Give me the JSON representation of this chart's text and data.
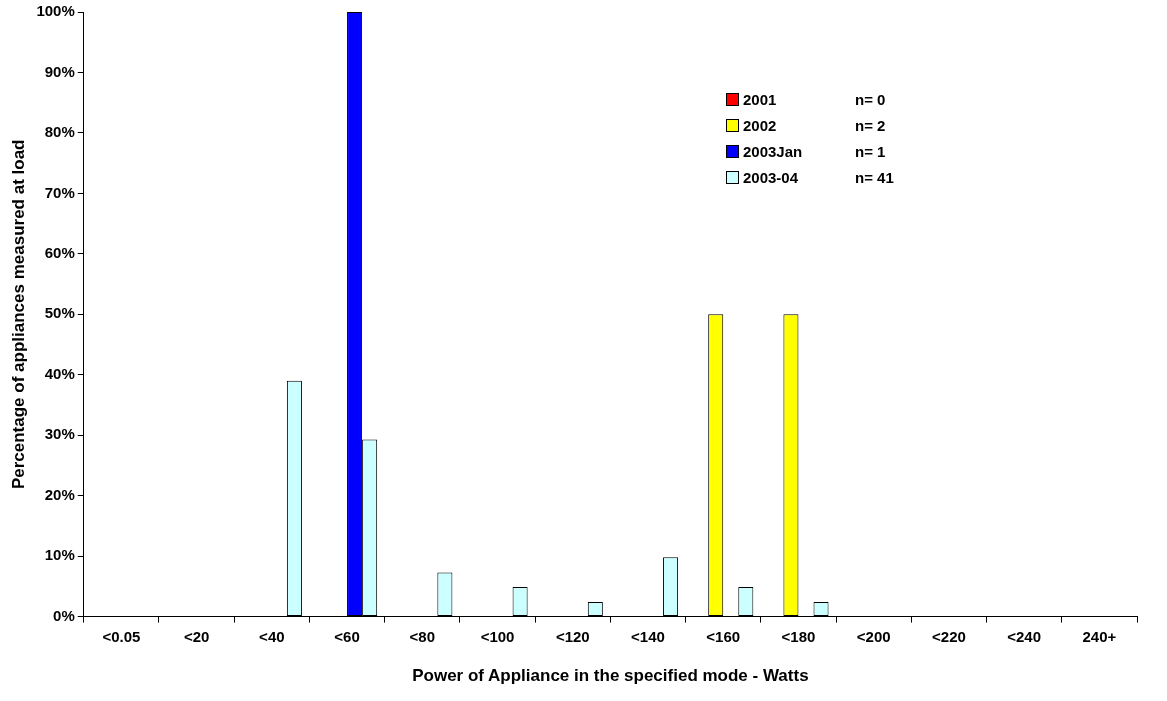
{
  "chart_data": {
    "type": "bar",
    "xlabel": "Power of Appliance in the specified mode - Watts",
    "ylabel": "Percentage of appliances measured at load",
    "categories": [
      "<0.05",
      "<20",
      "<40",
      "<60",
      "<80",
      "<100",
      "<120",
      "<140",
      "<160",
      "<180",
      "<200",
      "<220",
      "<240",
      "240+"
    ],
    "series": [
      {
        "name": "2001",
        "color": "#ff0000",
        "values": [
          0,
          0,
          0,
          0,
          0,
          0,
          0,
          0,
          0,
          0,
          0,
          0,
          0,
          0
        ]
      },
      {
        "name": "2002",
        "color": "#ffff00",
        "values": [
          0,
          0,
          0,
          0,
          0,
          0,
          0,
          0,
          50,
          50,
          0,
          0,
          0,
          0
        ]
      },
      {
        "name": "2003Jan",
        "color": "#0000ff",
        "values": [
          0,
          0,
          0,
          100,
          0,
          0,
          0,
          0,
          0,
          0,
          0,
          0,
          0,
          0
        ]
      },
      {
        "name": "2003-04",
        "color": "#ccffff",
        "values": [
          0,
          0,
          39,
          29.3,
          7.3,
          4.9,
          2.4,
          9.8,
          4.9,
          2.4,
          0,
          0,
          0,
          0
        ]
      }
    ],
    "ylim": [
      0,
      100
    ],
    "yticks": [
      {
        "value": 0,
        "label": "0%"
      },
      {
        "value": 10,
        "label": "10%"
      },
      {
        "value": 20,
        "label": "20%"
      },
      {
        "value": 30,
        "label": "30%"
      },
      {
        "value": 40,
        "label": "40%"
      },
      {
        "value": 50,
        "label": "50%"
      },
      {
        "value": 60,
        "label": "60%"
      },
      {
        "value": 70,
        "label": "70%"
      },
      {
        "value": 80,
        "label": "80%"
      },
      {
        "value": 90,
        "label": "90%"
      },
      {
        "value": 100,
        "label": "100%"
      }
    ],
    "grid": false,
    "legend": "top right",
    "annotations": [
      "n= 0",
      "n= 2",
      "n= 1",
      "n= 41"
    ]
  }
}
